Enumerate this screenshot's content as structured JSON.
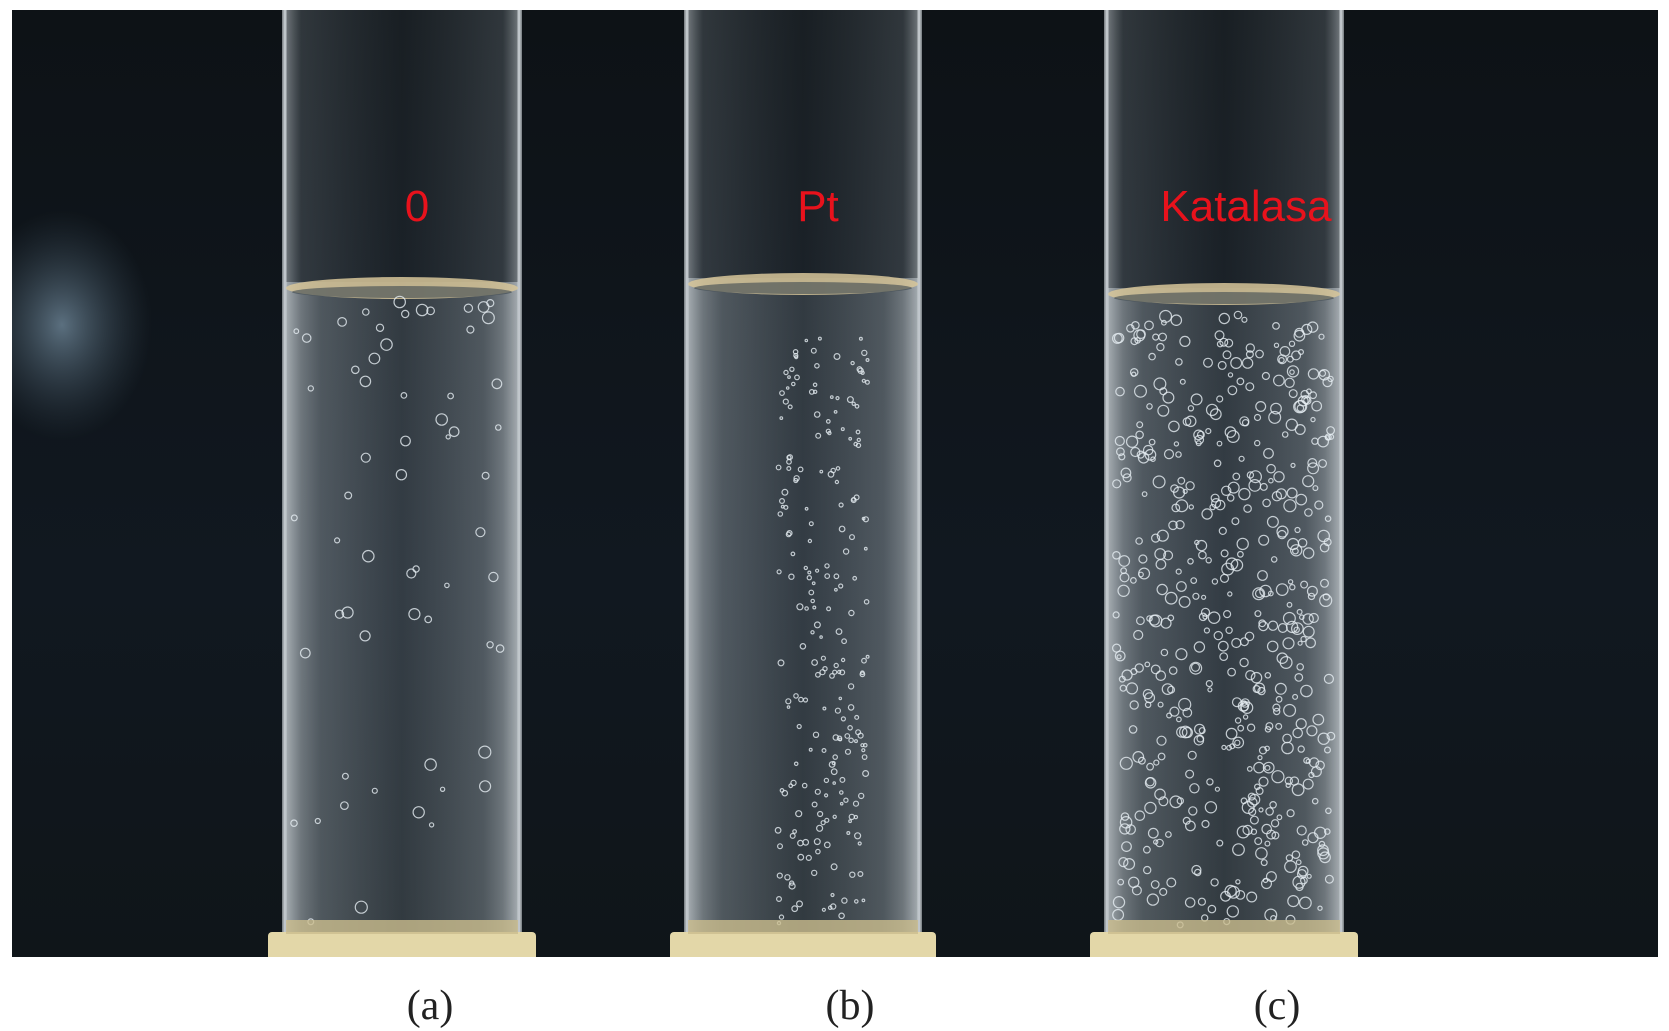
{
  "photo": {
    "tubes": [
      {
        "id": "a",
        "label": "0",
        "caption": "(a)",
        "bubble_density": "low"
      },
      {
        "id": "b",
        "label": "Pt",
        "caption": "(b)",
        "bubble_density": "medium"
      },
      {
        "id": "c",
        "label": "Katalasa",
        "caption": "(c)",
        "bubble_density": "high"
      }
    ],
    "colors": {
      "label": "#e8121c",
      "background": "#0f1519",
      "liquid_surface": "#d8c79a",
      "stopper": "#e3d7a8"
    }
  }
}
